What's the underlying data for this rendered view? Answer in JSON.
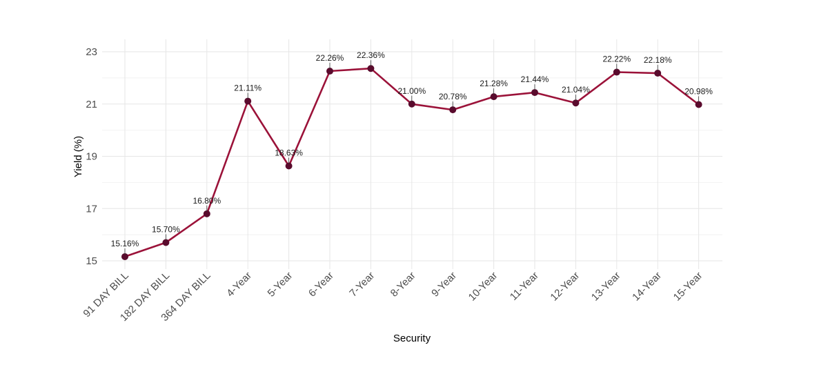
{
  "chart_data": {
    "type": "line",
    "title": "",
    "xlabel": "Security",
    "ylabel": "Yield (%)",
    "ylim": [
      14.8,
      23.4
    ],
    "yticks": [
      15,
      17,
      19,
      21,
      23
    ],
    "grid": true,
    "legend": "none",
    "categories": [
      "91 DAY BILL",
      "182 DAY BILL",
      "364 DAY BILL",
      "4-Year",
      "5-Year",
      "6-Year",
      "7-Year",
      "8-Year",
      "9-Year",
      "10-Year",
      "11-Year",
      "12-Year",
      "13-Year",
      "14-Year",
      "15-Year"
    ],
    "values": [
      15.16,
      15.7,
      16.8,
      21.11,
      18.63,
      22.26,
      22.36,
      21.0,
      20.78,
      21.28,
      21.44,
      21.04,
      22.22,
      22.18,
      20.98
    ],
    "labels": [
      "15.16%",
      "15.70%",
      "16.80%",
      "21.11%",
      "18.63%",
      "22.26%",
      "22.36%",
      "21.00%",
      "20.78%",
      "21.28%",
      "21.44%",
      "21.04%",
      "22.22%",
      "22.18%",
      "20.98%"
    ],
    "colors": {
      "line": "#9b1239",
      "point": "#5a0b2d"
    }
  }
}
